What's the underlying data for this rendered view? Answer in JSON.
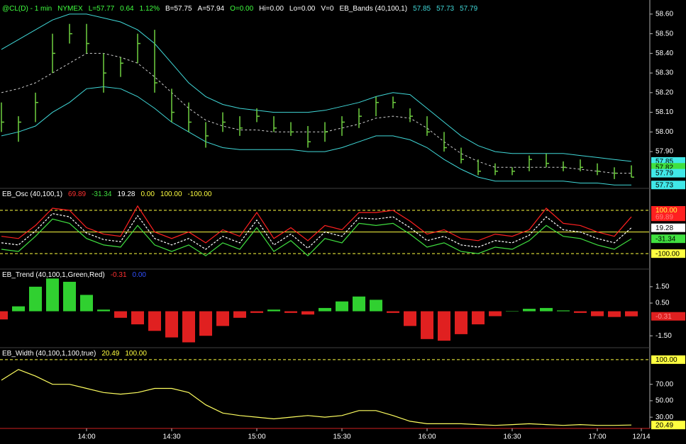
{
  "chart_data": [
    {
      "type": "ohlc",
      "header": [
        {
          "text": "@CL(D) - 1 min",
          "color": "#40ff40"
        },
        {
          "text": "NYMEX",
          "color": "#40ff40"
        },
        {
          "text": "L=57.77",
          "color": "#40ff40"
        },
        {
          "text": "0.64",
          "color": "#40ff40"
        },
        {
          "text": "1.12%",
          "color": "#40ff40"
        },
        {
          "text": "B=57.75",
          "color": "#ffffff"
        },
        {
          "text": "A=57.94",
          "color": "#ffffff"
        },
        {
          "text": "O=0.00",
          "color": "#40ff40"
        },
        {
          "text": "Hi=0.00",
          "color": "#ffffff"
        },
        {
          "text": "Lo=0.00",
          "color": "#ffffff"
        },
        {
          "text": "V=0",
          "color": "#ffffff"
        },
        {
          "text": "EB_Bands (40,100,1)",
          "color": "#ffffff"
        },
        {
          "text": "57.85",
          "color": "#40d8d8"
        },
        {
          "text": "57.73",
          "color": "#40d8d8"
        },
        {
          "text": "57.79",
          "color": "#40d8d8"
        }
      ],
      "x": [
        0,
        6,
        12,
        18,
        24,
        30,
        36,
        42,
        48,
        54,
        60,
        66,
        72,
        78,
        84,
        90,
        96,
        102,
        108,
        114,
        120,
        126,
        132,
        138,
        144,
        150,
        156,
        162,
        168,
        174,
        180,
        186,
        192,
        198,
        204,
        210,
        216,
        222
      ],
      "xlim": [
        -0.5,
        228.25
      ],
      "ylim": [
        57.72,
        58.65
      ],
      "yticks": [
        {
          "value": 58.6,
          "label": "58.60"
        },
        {
          "value": 58.5,
          "label": "58.50"
        },
        {
          "value": 58.4,
          "label": "58.40"
        },
        {
          "value": 58.3,
          "label": "58.30"
        },
        {
          "value": 58.2,
          "label": "58.20"
        },
        {
          "value": 58.1,
          "label": "58.10"
        },
        {
          "value": 58.0,
          "label": "58.00"
        },
        {
          "value": 57.9,
          "label": "57.90"
        }
      ],
      "high": [
        58.15,
        58.08,
        58.2,
        58.5,
        58.55,
        58.55,
        58.4,
        58.38,
        58.5,
        58.52,
        58.22,
        58.15,
        58.05,
        58.1,
        58.08,
        58.12,
        58.08,
        58.05,
        58.03,
        58.05,
        58.08,
        58.12,
        58.18,
        58.18,
        58.12,
        58.08,
        58.0,
        57.92,
        57.86,
        57.84,
        57.82,
        57.88,
        57.89,
        57.85,
        57.86,
        57.84,
        57.82,
        57.83
      ],
      "low": [
        58.0,
        57.95,
        58.05,
        58.3,
        58.45,
        58.4,
        58.2,
        58.28,
        58.35,
        58.2,
        58.05,
        58.0,
        57.92,
        58.0,
        57.98,
        58.05,
        58.0,
        57.98,
        57.92,
        57.95,
        57.98,
        58.02,
        58.08,
        58.12,
        58.05,
        57.98,
        57.9,
        57.84,
        57.78,
        57.78,
        57.78,
        57.8,
        57.82,
        57.8,
        57.8,
        57.78,
        57.76,
        57.77
      ],
      "close": [
        58.05,
        58.05,
        58.15,
        58.4,
        58.5,
        58.45,
        58.3,
        58.35,
        58.45,
        58.25,
        58.1,
        58.05,
        57.98,
        58.05,
        58.02,
        58.08,
        58.02,
        58.0,
        57.95,
        58.0,
        58.05,
        58.08,
        58.15,
        58.15,
        58.08,
        58.0,
        57.92,
        57.86,
        57.8,
        57.8,
        57.8,
        57.86,
        57.84,
        57.82,
        57.82,
        57.8,
        57.79,
        57.77
      ],
      "bar_color": "#6fd040",
      "bands": {
        "color": "#40d8d8",
        "mid_color": "#d0d0d0",
        "upper": [
          58.42,
          58.47,
          58.52,
          58.57,
          58.6,
          58.6,
          58.58,
          58.56,
          58.52,
          58.45,
          58.35,
          58.25,
          58.18,
          58.14,
          58.12,
          58.11,
          58.1,
          58.1,
          58.1,
          58.11,
          58.13,
          58.15,
          58.18,
          58.2,
          58.19,
          58.12,
          58.05,
          57.98,
          57.93,
          57.9,
          57.89,
          57.89,
          57.89,
          57.89,
          57.88,
          57.87,
          57.86,
          57.85
        ],
        "middle": [
          58.2,
          58.22,
          58.25,
          58.3,
          58.35,
          58.4,
          58.4,
          58.38,
          58.35,
          58.28,
          58.2,
          58.12,
          58.06,
          58.03,
          58.01,
          58.01,
          58.0,
          58.0,
          58.0,
          58.0,
          58.02,
          58.04,
          58.07,
          58.08,
          58.07,
          58.02,
          57.95,
          57.89,
          57.85,
          57.82,
          57.82,
          57.82,
          57.82,
          57.82,
          57.81,
          57.8,
          57.79,
          57.79
        ],
        "lower": [
          57.98,
          58.0,
          58.03,
          58.1,
          58.15,
          58.22,
          58.23,
          58.22,
          58.18,
          58.12,
          58.05,
          58.0,
          57.95,
          57.92,
          57.91,
          57.91,
          57.91,
          57.91,
          57.9,
          57.9,
          57.92,
          57.95,
          57.98,
          57.98,
          57.96,
          57.92,
          57.86,
          57.81,
          57.77,
          57.75,
          57.75,
          57.75,
          57.75,
          57.75,
          57.74,
          57.74,
          57.73,
          57.73
        ]
      },
      "markers": [
        {
          "value": 57.85,
          "label": "57.85",
          "color": "#40e8e8",
          "text_color": "#000000"
        },
        {
          "value": 57.82,
          "label": "57.82",
          "color": "#40e040",
          "text_color": "#000000"
        },
        {
          "value": 57.79,
          "label": "57.79",
          "color": "#40e8e8",
          "text_color": "#000000"
        },
        {
          "value": 57.73,
          "label": "57.73",
          "color": "#40e8e8",
          "text_color": "#000000"
        }
      ]
    },
    {
      "type": "line",
      "header": [
        {
          "text": "EB_Osc (40,100,1)",
          "color": "#ffffff"
        },
        {
          "text": "69.89",
          "color": "#ff3030"
        },
        {
          "text": "-31.34",
          "color": "#40e040"
        },
        {
          "text": "19.28",
          "color": "#ffffff"
        },
        {
          "text": "0.00",
          "color": "#ffff40"
        },
        {
          "text": "100.00",
          "color": "#ffff40"
        },
        {
          "text": "-100.00",
          "color": "#ffff40"
        }
      ],
      "x": [
        0,
        6,
        12,
        18,
        24,
        30,
        36,
        42,
        48,
        54,
        60,
        66,
        72,
        78,
        84,
        90,
        96,
        102,
        108,
        114,
        120,
        126,
        132,
        138,
        144,
        150,
        156,
        162,
        168,
        174,
        180,
        186,
        192,
        198,
        204,
        210,
        216,
        222
      ],
      "xlim": [
        -0.5,
        228.25
      ],
      "ylim": [
        -165,
        195
      ],
      "levels": [
        {
          "value": 100,
          "style": "dashed"
        },
        {
          "value": 0,
          "style": "solid"
        },
        {
          "value": -100,
          "style": "dashed"
        }
      ],
      "level_color": "#ffff40",
      "lines": [
        {
          "color": "#40e040",
          "dash": false,
          "values": [
            -80,
            -90,
            -20,
            60,
            40,
            -30,
            -60,
            -70,
            30,
            -60,
            -90,
            -60,
            -110,
            -50,
            -80,
            20,
            -90,
            -40,
            -110,
            -30,
            -50,
            40,
            30,
            40,
            -10,
            -70,
            -50,
            -90,
            -100,
            -70,
            -80,
            -40,
            30,
            -20,
            -30,
            -60,
            -80,
            -31.34
          ]
        },
        {
          "color": "#ffffff",
          "dash": true,
          "values": [
            -50,
            -60,
            5,
            85,
            70,
            -5,
            -35,
            -45,
            75,
            -30,
            -60,
            -30,
            -80,
            -20,
            -50,
            55,
            -60,
            -10,
            -75,
            0,
            -20,
            65,
            60,
            70,
            20,
            -40,
            -20,
            -60,
            -70,
            -40,
            -50,
            -15,
            70,
            10,
            0,
            -30,
            -50,
            19.28
          ]
        },
        {
          "color": "#ff2020",
          "dash": false,
          "values": [
            -20,
            -30,
            30,
            110,
            100,
            20,
            -10,
            -20,
            120,
            0,
            -30,
            0,
            -50,
            10,
            -20,
            90,
            -30,
            20,
            -40,
            30,
            10,
            90,
            90,
            100,
            50,
            -10,
            10,
            -30,
            -40,
            -10,
            -20,
            10,
            110,
            40,
            30,
            0,
            -20,
            69.89
          ]
        }
      ],
      "markers": [
        {
          "value": 100,
          "label": "100.00",
          "color": "#ff2020",
          "text_color": "#ffff40"
        },
        {
          "value": 69.89,
          "label": "69.89",
          "color": "#ff2020",
          "text_color": "#ff8080"
        },
        {
          "value": 19.28,
          "label": "19.28",
          "color": "#ffffff",
          "text_color": "#000000"
        },
        {
          "value": -31.34,
          "label": "-31.34",
          "color": "#40e040",
          "text_color": "#000000"
        },
        {
          "value": -100,
          "label": "-100.00",
          "color": "#ffff40",
          "text_color": "#000000"
        }
      ]
    },
    {
      "type": "bar",
      "header": [
        {
          "text": "EB_Trend (40,100,1,Green,Red)",
          "color": "#ffffff"
        },
        {
          "text": "-0.31",
          "color": "#ff3030"
        },
        {
          "text": "0.00",
          "color": "#3050ff"
        }
      ],
      "x": [
        0,
        6,
        12,
        18,
        24,
        30,
        36,
        42,
        48,
        54,
        60,
        66,
        72,
        78,
        84,
        90,
        96,
        102,
        108,
        114,
        120,
        126,
        132,
        138,
        144,
        150,
        156,
        162,
        168,
        174,
        180,
        186,
        192,
        198,
        204,
        210,
        216,
        222
      ],
      "xlim": [
        -0.5,
        228.25
      ],
      "ylim": [
        -2.14,
        2.49
      ],
      "yticks": [
        {
          "value": 1.5,
          "label": "1.50"
        },
        {
          "value": 0.5,
          "label": "0.50"
        },
        {
          "value": -1.5,
          "label": "-1.50"
        }
      ],
      "up_color": "#30d030",
      "down_color": "#e02020",
      "values": [
        -0.5,
        0.3,
        1.5,
        2.0,
        1.8,
        1.0,
        0.1,
        -0.4,
        -0.8,
        -1.2,
        -1.6,
        -1.9,
        -1.5,
        -0.9,
        -0.4,
        -0.1,
        0.1,
        -0.1,
        -0.2,
        0.2,
        0.6,
        0.9,
        0.7,
        -0.1,
        -0.9,
        -1.7,
        -1.8,
        -1.4,
        -0.8,
        -0.3,
        0.0,
        0.15,
        0.2,
        0.05,
        -0.1,
        -0.3,
        -0.35,
        -0.31
      ],
      "markers": [
        {
          "value": -0.31,
          "label": "-0.31",
          "color": "#e02020",
          "text_color": "#ff9090"
        }
      ]
    },
    {
      "type": "line",
      "header": [
        {
          "text": "EB_Width (40,100,1,100,true)",
          "color": "#ffffff"
        },
        {
          "text": "20.49",
          "color": "#ffff40"
        },
        {
          "text": "100.00",
          "color": "#ffff40"
        }
      ],
      "x": [
        0,
        6,
        12,
        18,
        24,
        30,
        36,
        42,
        48,
        54,
        60,
        66,
        72,
        78,
        84,
        90,
        96,
        102,
        108,
        114,
        120,
        126,
        132,
        138,
        144,
        150,
        156,
        162,
        168,
        174,
        180,
        186,
        192,
        198,
        204,
        210,
        216,
        222
      ],
      "xlim": [
        -0.5,
        228.25
      ],
      "ylim": [
        17.2,
        112.8
      ],
      "yticks": [
        {
          "value": 70,
          "label": "70.00"
        },
        {
          "value": 50,
          "label": "50.00"
        },
        {
          "value": 30,
          "label": "30.00"
        }
      ],
      "xticks": [
        {
          "value": 30,
          "label": "14:00"
        },
        {
          "value": 60,
          "label": "14:30"
        },
        {
          "value": 90,
          "label": "15:00"
        },
        {
          "value": 120,
          "label": "15:30"
        },
        {
          "value": 150,
          "label": "16:00"
        },
        {
          "value": 180,
          "label": "16:30"
        },
        {
          "value": 210,
          "label": "17:00"
        },
        {
          "value": 225.5,
          "label": "12/14"
        }
      ],
      "levels": [
        {
          "value": 100,
          "style": "dashed"
        }
      ],
      "level_color": "#ffff40",
      "lines": [
        {
          "color": "#ffff60",
          "dash": false,
          "values": [
            75,
            88,
            80,
            70,
            70,
            65,
            60,
            58,
            60,
            65,
            65,
            60,
            45,
            35,
            32,
            30,
            28,
            30,
            32,
            30,
            32,
            38,
            38,
            32,
            25,
            22,
            22,
            22,
            21,
            20,
            21,
            22,
            21,
            20,
            21,
            20,
            20,
            20.49
          ]
        }
      ],
      "markers": [
        {
          "value": 100,
          "label": "100.00",
          "color": "#ffff40",
          "text_color": "#000000"
        },
        {
          "value": 20.49,
          "label": "20.49",
          "color": "#ffff40",
          "text_color": "#000000"
        }
      ]
    }
  ]
}
